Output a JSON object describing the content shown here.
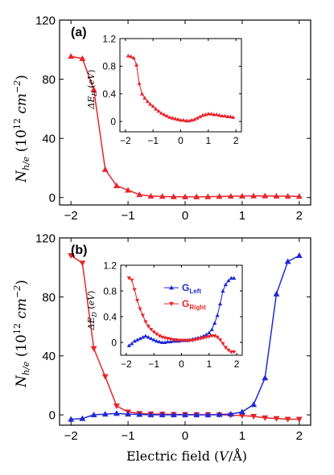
{
  "chart_data": [
    {
      "type": "line",
      "panel_label": "(a)",
      "ylabel": "N_{h/e} (10^{12} cm^{-2})",
      "ylim": [
        -5,
        120
      ],
      "xlim": [
        -2.2,
        2.2
      ],
      "yticks": [
        0,
        40,
        80,
        120
      ],
      "xticks": [
        -2,
        -1,
        0,
        1,
        2
      ],
      "series": [
        {
          "color": "#e8252a",
          "marker": "triangle-up",
          "x": [
            -2.0,
            -1.8,
            -1.6,
            -1.4,
            -1.2,
            -1.0,
            -0.8,
            -0.6,
            -0.4,
            -0.2,
            0.0,
            0.2,
            0.4,
            0.6,
            0.8,
            1.0,
            1.2,
            1.4,
            1.6,
            1.8,
            2.0
          ],
          "values": [
            95.5,
            94,
            73,
            19,
            8,
            5,
            2,
            1,
            0.8,
            0.6,
            0.5,
            0.5,
            0.6,
            0.8,
            0.9,
            1.0,
            1.1,
            1.1,
            1.0,
            0.9,
            0.8
          ]
        }
      ],
      "inset": {
        "ylabel": "ΔE_D (eV)",
        "ylim": [
          -0.15,
          1.2
        ],
        "xlim": [
          -2.2,
          2.2
        ],
        "yticks": [
          0.0,
          0.4,
          0.8,
          1.2
        ],
        "xticks": [
          -2,
          -1,
          0,
          1,
          2
        ],
        "series": [
          {
            "color": "#e8252a",
            "marker": "triangle-up",
            "x": [
              -1.9,
              -1.8,
              -1.7,
              -1.6,
              -1.5,
              -1.4,
              -1.3,
              -1.2,
              -1.1,
              -1.0,
              -0.9,
              -0.8,
              -0.7,
              -0.6,
              -0.5,
              -0.4,
              -0.3,
              -0.2,
              -0.1,
              0.0,
              0.1,
              0.2,
              0.3,
              0.4,
              0.5,
              0.6,
              0.7,
              0.8,
              0.9,
              1.0,
              1.1,
              1.2,
              1.3,
              1.4,
              1.5,
              1.6,
              1.7,
              1.8,
              1.9
            ],
            "values": [
              0.95,
              0.94,
              0.92,
              0.82,
              0.55,
              0.4,
              0.34,
              0.29,
              0.25,
              0.22,
              0.18,
              0.15,
              0.12,
              0.1,
              0.08,
              0.06,
              0.05,
              0.04,
              0.03,
              0.02,
              0.02,
              0.01,
              0.01,
              0.02,
              0.03,
              0.05,
              0.07,
              0.09,
              0.1,
              0.11,
              0.11,
              0.1,
              0.1,
              0.09,
              0.08,
              0.08,
              0.07,
              0.07,
              0.06
            ]
          }
        ]
      }
    },
    {
      "type": "line",
      "panel_label": "(b)",
      "xlabel": "Electric field (V/Å)",
      "ylabel": "N_{h/e} (10^{12} cm^{-2})",
      "ylim": [
        -7,
        120
      ],
      "xlim": [
        -2.2,
        2.2
      ],
      "yticks": [
        0,
        40,
        80,
        120
      ],
      "xticks": [
        -2,
        -1,
        0,
        1,
        2
      ],
      "series": [
        {
          "color": "#e8252a",
          "marker": "triangle-down",
          "x": [
            -2.0,
            -1.8,
            -1.6,
            -1.4,
            -1.2,
            -1.0,
            -0.8,
            -0.6,
            -0.4,
            -0.2,
            0.0,
            0.2,
            0.4,
            0.6,
            0.8,
            1.0,
            1.2,
            1.4,
            1.6,
            1.8,
            2.0
          ],
          "values": [
            108,
            103,
            45,
            26,
            6,
            2,
            1,
            0.6,
            0.5,
            0.3,
            0.2,
            0.1,
            0.1,
            0,
            -0.2,
            -0.5,
            -1,
            -2,
            -2.5,
            -3,
            -3
          ]
        },
        {
          "color": "#1f2ad4",
          "marker": "triangle-up",
          "x": [
            -2.0,
            -1.8,
            -1.6,
            -1.4,
            -1.2,
            -1.0,
            -0.8,
            -0.6,
            -0.4,
            -0.2,
            0.0,
            0.2,
            0.4,
            0.6,
            0.8,
            1.0,
            1.2,
            1.4,
            1.6,
            1.8,
            2.0
          ],
          "values": [
            -3,
            -2.5,
            0,
            0.5,
            1,
            0.5,
            0.3,
            0,
            0,
            0,
            0,
            0,
            0,
            0.2,
            0.5,
            2,
            7,
            25,
            82,
            104,
            108
          ]
        }
      ],
      "inset": {
        "ylabel": "ΔE_D (eV)",
        "ylim": [
          -0.2,
          1.2
        ],
        "xlim": [
          -2.2,
          2.2
        ],
        "yticks": [
          0.0,
          0.4,
          0.8,
          1.2
        ],
        "xticks": [
          -2,
          -1,
          0,
          1,
          2
        ],
        "legend": [
          {
            "label": "G",
            "sub": "Left",
            "color": "#1f2ad4",
            "marker": "triangle-up"
          },
          {
            "label": "G",
            "sub": "Right",
            "color": "#e8252a",
            "marker": "triangle-down"
          }
        ],
        "series": [
          {
            "name": "GLeft",
            "color": "#1f2ad4",
            "marker": "triangle-up",
            "x": [
              -1.9,
              -1.8,
              -1.7,
              -1.6,
              -1.5,
              -1.4,
              -1.3,
              -1.2,
              -1.1,
              -1.0,
              -0.9,
              -0.8,
              -0.7,
              -0.6,
              -0.5,
              -0.4,
              -0.3,
              -0.2,
              -0.1,
              0.0,
              0.1,
              0.2,
              0.3,
              0.4,
              0.5,
              0.6,
              0.7,
              0.8,
              0.9,
              1.0,
              1.1,
              1.2,
              1.3,
              1.4,
              1.5,
              1.6,
              1.7,
              1.8,
              1.9
            ],
            "values": [
              -0.05,
              -0.02,
              0.02,
              0.04,
              0.06,
              0.08,
              0.1,
              0.08,
              0.06,
              0.04,
              0.02,
              0.01,
              0.0,
              0.0,
              0.01,
              0.01,
              0.02,
              0.02,
              0.02,
              0.03,
              0.03,
              0.03,
              0.04,
              0.05,
              0.06,
              0.07,
              0.08,
              0.1,
              0.12,
              0.15,
              0.2,
              0.3,
              0.42,
              0.6,
              0.8,
              0.9,
              0.96,
              1.0,
              1.0
            ]
          },
          {
            "name": "GRight",
            "color": "#e8252a",
            "marker": "triangle-down",
            "x": [
              -1.9,
              -1.8,
              -1.7,
              -1.6,
              -1.5,
              -1.4,
              -1.3,
              -1.2,
              -1.1,
              -1.0,
              -0.9,
              -0.8,
              -0.7,
              -0.6,
              -0.5,
              -0.4,
              -0.3,
              -0.2,
              -0.1,
              0.0,
              0.1,
              0.2,
              0.3,
              0.4,
              0.5,
              0.6,
              0.7,
              0.8,
              0.9,
              1.0,
              1.1,
              1.2,
              1.3,
              1.4,
              1.5,
              1.6,
              1.7,
              1.8,
              1.9
            ],
            "values": [
              1.0,
              0.97,
              0.82,
              0.65,
              0.52,
              0.42,
              0.32,
              0.25,
              0.2,
              0.16,
              0.13,
              0.1,
              0.08,
              0.07,
              0.06,
              0.05,
              0.04,
              0.04,
              0.03,
              0.03,
              0.03,
              0.03,
              0.03,
              0.03,
              0.04,
              0.05,
              0.06,
              0.07,
              0.08,
              0.09,
              0.1,
              0.1,
              0.08,
              0.04,
              -0.02,
              -0.08,
              -0.12,
              -0.15,
              -0.15
            ]
          }
        ]
      }
    }
  ]
}
